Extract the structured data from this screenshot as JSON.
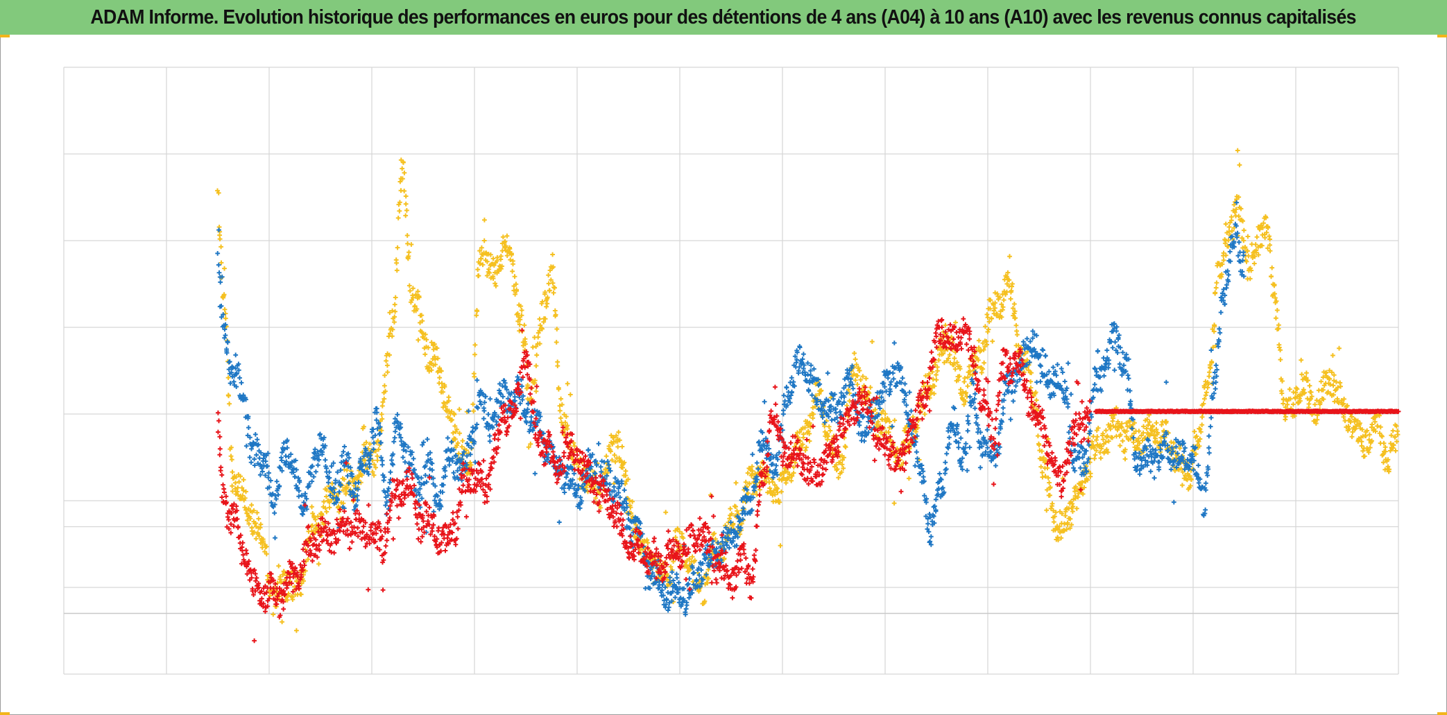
{
  "title": "ADAM Informe. Evolution historique des performances en euros pour des détentions de 4 ans (A04) à 10 ans (A10) avec les revenus connus capitalisés",
  "colors": {
    "title_bg": "#82c97c",
    "corner_accent": "#f2b51c",
    "grid": "#d6d6d6",
    "axis_line": "#c8c8c8"
  },
  "chart_data": {
    "type": "scatter",
    "title": "ADAM Informe. Evolution historique des performances en euros pour des détentions de 4 ans (A04) à 10 ans (A10) avec les revenus connus capitalisés",
    "xlabel": "",
    "ylabel": "",
    "xlim": [
      0,
      13
    ],
    "ylim": [
      0,
      7
    ],
    "x_gridlines": 13,
    "y_gridlines": [
      0,
      1,
      1.7,
      2,
      3,
      4,
      5,
      6,
      7
    ],
    "zero_line": 0.7,
    "grid": true,
    "legend": "none",
    "marker": "plus",
    "series": [
      {
        "color": "#f5c020",
        "anchors": [
          [
            1.5,
            5.55
          ],
          [
            1.55,
            4.4
          ],
          [
            1.65,
            2.3
          ],
          [
            1.8,
            1.9
          ],
          [
            1.95,
            1.5
          ],
          [
            2.05,
            0.8
          ],
          [
            2.15,
            1.1
          ],
          [
            2.25,
            0.95
          ],
          [
            2.45,
            1.7
          ],
          [
            2.6,
            2.0
          ],
          [
            2.8,
            2.2
          ],
          [
            3.05,
            2.6
          ],
          [
            3.2,
            4.0
          ],
          [
            3.3,
            5.8
          ],
          [
            3.4,
            4.3
          ],
          [
            3.6,
            3.6
          ],
          [
            3.85,
            2.7
          ],
          [
            3.95,
            2.3
          ],
          [
            4.05,
            4.8
          ],
          [
            4.2,
            4.7
          ],
          [
            4.35,
            4.9
          ],
          [
            4.45,
            4.0
          ],
          [
            4.55,
            3.2
          ],
          [
            4.65,
            4.1
          ],
          [
            4.75,
            4.7
          ],
          [
            4.85,
            3.0
          ],
          [
            5.0,
            2.4
          ],
          [
            5.2,
            2.1
          ],
          [
            5.4,
            2.7
          ],
          [
            5.5,
            2.0
          ],
          [
            5.65,
            1.4
          ],
          [
            5.85,
            1.15
          ],
          [
            6.0,
            1.5
          ],
          [
            6.2,
            1.0
          ],
          [
            6.35,
            1.4
          ],
          [
            6.55,
            1.8
          ],
          [
            6.75,
            2.3
          ],
          [
            6.95,
            2.1
          ],
          [
            7.15,
            2.6
          ],
          [
            7.35,
            3.15
          ],
          [
            7.55,
            2.4
          ],
          [
            7.7,
            3.5
          ],
          [
            7.95,
            2.9
          ],
          [
            8.15,
            2.5
          ],
          [
            8.3,
            2.9
          ],
          [
            8.45,
            3.4
          ],
          [
            8.6,
            3.9
          ],
          [
            8.75,
            3.3
          ],
          [
            8.9,
            3.6
          ],
          [
            9.05,
            4.2
          ],
          [
            9.2,
            4.45
          ],
          [
            9.35,
            3.6
          ],
          [
            9.45,
            3.25
          ],
          [
            9.55,
            2.3
          ],
          [
            9.7,
            1.65
          ],
          [
            9.85,
            2.0
          ],
          [
            10.05,
            2.6
          ],
          [
            10.25,
            2.85
          ],
          [
            10.45,
            2.7
          ],
          [
            10.65,
            2.8
          ],
          [
            10.8,
            2.6
          ],
          [
            10.95,
            2.3
          ],
          [
            11.05,
            2.7
          ],
          [
            11.15,
            3.5
          ],
          [
            11.25,
            4.6
          ],
          [
            11.35,
            5.1
          ],
          [
            11.45,
            5.3
          ],
          [
            11.55,
            4.7
          ],
          [
            11.7,
            5.2
          ],
          [
            11.8,
            4.3
          ],
          [
            11.9,
            3.0
          ],
          [
            12.05,
            3.3
          ],
          [
            12.2,
            3.1
          ],
          [
            12.35,
            3.4
          ],
          [
            12.5,
            3.0
          ],
          [
            12.65,
            2.7
          ],
          [
            12.8,
            2.9
          ],
          [
            12.9,
            2.5
          ],
          [
            13.0,
            2.7
          ]
        ]
      },
      {
        "color": "#1f77c4",
        "anchors": [
          [
            1.5,
            4.85
          ],
          [
            1.55,
            4.0
          ],
          [
            1.65,
            3.5
          ],
          [
            1.75,
            3.2
          ],
          [
            1.85,
            2.5
          ],
          [
            1.95,
            2.5
          ],
          [
            2.05,
            2.0
          ],
          [
            2.15,
            2.6
          ],
          [
            2.25,
            2.3
          ],
          [
            2.35,
            2.0
          ],
          [
            2.5,
            2.7
          ],
          [
            2.6,
            2.1
          ],
          [
            2.75,
            2.4
          ],
          [
            2.85,
            2.1
          ],
          [
            2.95,
            2.5
          ],
          [
            3.05,
            2.9
          ],
          [
            3.15,
            2.0
          ],
          [
            3.25,
            2.9
          ],
          [
            3.35,
            2.5
          ],
          [
            3.45,
            2.1
          ],
          [
            3.55,
            2.4
          ],
          [
            3.65,
            2.0
          ],
          [
            3.75,
            2.5
          ],
          [
            3.9,
            2.4
          ],
          [
            4.05,
            3.1
          ],
          [
            4.15,
            2.9
          ],
          [
            4.3,
            3.2
          ],
          [
            4.45,
            3.2
          ],
          [
            4.6,
            2.9
          ],
          [
            4.8,
            2.4
          ],
          [
            5.0,
            2.1
          ],
          [
            5.15,
            2.4
          ],
          [
            5.35,
            2.2
          ],
          [
            5.55,
            1.7
          ],
          [
            5.7,
            1.2
          ],
          [
            5.85,
            1.0
          ],
          [
            6.05,
            0.9
          ],
          [
            6.25,
            1.3
          ],
          [
            6.45,
            1.5
          ],
          [
            6.65,
            1.9
          ],
          [
            6.8,
            2.6
          ],
          [
            6.95,
            2.4
          ],
          [
            7.05,
            3.3
          ],
          [
            7.2,
            3.6
          ],
          [
            7.35,
            3.2
          ],
          [
            7.5,
            3.0
          ],
          [
            7.65,
            3.4
          ],
          [
            7.8,
            2.8
          ],
          [
            7.95,
            3.2
          ],
          [
            8.1,
            3.5
          ],
          [
            8.25,
            3.0
          ],
          [
            8.35,
            2.3
          ],
          [
            8.45,
            1.7
          ],
          [
            8.55,
            2.2
          ],
          [
            8.65,
            2.9
          ],
          [
            8.75,
            2.5
          ],
          [
            8.85,
            3.2
          ],
          [
            8.95,
            2.7
          ],
          [
            9.05,
            2.5
          ],
          [
            9.2,
            3.3
          ],
          [
            9.35,
            3.6
          ],
          [
            9.45,
            3.9
          ],
          [
            9.55,
            3.5
          ],
          [
            9.65,
            3.4
          ],
          [
            9.75,
            3.3
          ],
          [
            9.85,
            2.4
          ],
          [
            9.95,
            2.5
          ],
          [
            10.05,
            3.3
          ],
          [
            10.15,
            3.6
          ],
          [
            10.25,
            3.9
          ],
          [
            10.35,
            3.5
          ],
          [
            10.45,
            2.5
          ],
          [
            10.6,
            2.5
          ],
          [
            10.75,
            2.6
          ],
          [
            10.9,
            2.5
          ],
          [
            11.0,
            2.5
          ],
          [
            11.1,
            2.0
          ],
          [
            11.2,
            3.2
          ],
          [
            11.3,
            4.5
          ],
          [
            11.4,
            5.0
          ],
          [
            11.5,
            4.8
          ]
        ]
      },
      {
        "color": "#e8141a",
        "anchors": [
          [
            1.5,
            2.8
          ],
          [
            1.55,
            2.0
          ],
          [
            1.65,
            1.8
          ],
          [
            1.75,
            1.4
          ],
          [
            1.85,
            1.0
          ],
          [
            1.95,
            0.95
          ],
          [
            2.1,
            0.9
          ],
          [
            2.2,
            1.05
          ],
          [
            2.3,
            1.2
          ],
          [
            2.4,
            1.5
          ],
          [
            2.5,
            1.6
          ],
          [
            2.6,
            1.6
          ],
          [
            2.75,
            1.7
          ],
          [
            2.9,
            1.65
          ],
          [
            3.0,
            1.6
          ],
          [
            3.1,
            1.5
          ],
          [
            3.2,
            2.0
          ],
          [
            3.35,
            2.2
          ],
          [
            3.5,
            1.8
          ],
          [
            3.6,
            1.7
          ],
          [
            3.7,
            1.5
          ],
          [
            3.8,
            1.7
          ],
          [
            3.9,
            2.2
          ],
          [
            4.0,
            2.3
          ],
          [
            4.1,
            2.1
          ],
          [
            4.2,
            2.6
          ],
          [
            4.3,
            3.0
          ],
          [
            4.4,
            3.1
          ],
          [
            4.5,
            3.7
          ],
          [
            4.6,
            2.8
          ],
          [
            4.7,
            2.6
          ],
          [
            4.8,
            2.4
          ],
          [
            4.95,
            2.6
          ],
          [
            5.1,
            2.3
          ],
          [
            5.3,
            2.0
          ],
          [
            5.5,
            1.5
          ],
          [
            5.65,
            1.4
          ],
          [
            5.8,
            1.3
          ],
          [
            6.0,
            1.45
          ],
          [
            6.2,
            1.6
          ],
          [
            6.35,
            1.3
          ],
          [
            6.5,
            1.1
          ],
          [
            6.6,
            1.3
          ],
          [
            6.7,
            1.1
          ],
          [
            6.8,
            2.2
          ],
          [
            6.9,
            3.0
          ],
          [
            7.0,
            2.6
          ],
          [
            7.15,
            2.5
          ],
          [
            7.3,
            2.3
          ],
          [
            7.45,
            2.5
          ],
          [
            7.6,
            2.9
          ],
          [
            7.75,
            3.2
          ],
          [
            7.85,
            3.0
          ],
          [
            7.95,
            2.7
          ],
          [
            8.05,
            2.6
          ],
          [
            8.15,
            2.4
          ],
          [
            8.25,
            2.8
          ],
          [
            8.35,
            3.1
          ],
          [
            8.45,
            3.6
          ],
          [
            8.55,
            4.0
          ],
          [
            8.65,
            3.8
          ],
          [
            8.75,
            4.0
          ],
          [
            8.85,
            3.7
          ],
          [
            8.95,
            3.1
          ],
          [
            9.05,
            2.8
          ],
          [
            9.15,
            3.5
          ],
          [
            9.3,
            3.6
          ],
          [
            9.4,
            3.2
          ],
          [
            9.5,
            2.9
          ],
          [
            9.6,
            2.6
          ],
          [
            9.7,
            2.2
          ],
          [
            9.8,
            2.6
          ],
          [
            9.9,
            2.9
          ],
          [
            10.0,
            3.03
          ]
        ],
        "plateau": {
          "x": [
            10.05,
            13.0
          ],
          "y": 3.03
        }
      }
    ]
  }
}
